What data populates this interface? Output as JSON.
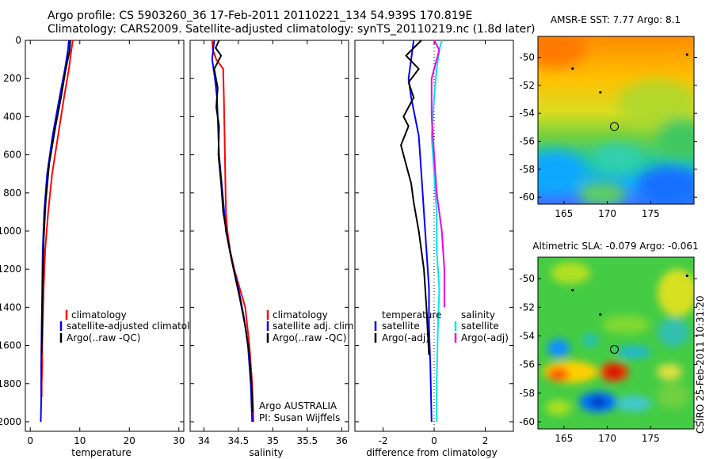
{
  "header": {
    "line1": "Argo profile: CS 5903260_36 17-Feb-2011 20110221_134 54.939S 170.819E",
    "line2": "Climatology: CARS2009. Satellite-adjusted climatology: synTS_20110219.nc (1.8d later)"
  },
  "stamp": "CSIRO 25-Feb-2011 10:31:20",
  "colors": {
    "climatology": "#ff0000",
    "satellite": "#0000ff",
    "argo": "#000000",
    "sat_salinity": "#00e5ee",
    "argo_salinity": "#ee00ee"
  },
  "chart_data": [
    {
      "type": "line",
      "id": "temperature",
      "xlabel": "temperature",
      "xlim": [
        -1,
        31
      ],
      "ylim": [
        2050,
        0
      ],
      "xticks": [
        0,
        10,
        20,
        30
      ],
      "yticks": [
        0,
        200,
        400,
        600,
        800,
        1000,
        1200,
        1400,
        1600,
        1800,
        2000
      ],
      "legend": [
        "climatology",
        "satellite-adjusted climatology",
        "Argo(..raw -QC)"
      ],
      "series": [
        {
          "name": "climatology",
          "color": "#ff0000",
          "x": [
            8.6,
            8.3,
            7.8,
            6.8,
            5.6,
            4.4,
            3.6,
            3.0,
            2.7,
            2.6,
            2.5,
            2.4,
            2.4,
            2.3,
            2.3
          ],
          "y": [
            0,
            50,
            150,
            300,
            500,
            700,
            900,
            1100,
            1300,
            1400,
            1500,
            1600,
            1700,
            1800,
            1870
          ]
        },
        {
          "name": "satellite-adjusted climatology",
          "color": "#0000ff",
          "x": [
            7.8,
            7.6,
            7.0,
            5.9,
            4.5,
            3.4,
            2.8,
            2.5,
            2.4,
            2.3,
            2.2,
            2.2,
            2.1
          ],
          "y": [
            0,
            50,
            150,
            300,
            500,
            700,
            900,
            1100,
            1300,
            1500,
            1700,
            1900,
            2000
          ]
        },
        {
          "name": "Argo(..raw -QC)",
          "color": "#000000",
          "x": [
            8.1,
            7.9,
            7.1,
            6.2,
            5.1,
            3.8,
            3.1,
            2.7,
            2.5,
            2.4,
            2.3
          ],
          "y": [
            0,
            60,
            160,
            300,
            450,
            650,
            850,
            1050,
            1250,
            1450,
            1650
          ]
        }
      ]
    },
    {
      "type": "line",
      "id": "salinity",
      "xlabel": "salinity",
      "xlim": [
        33.8,
        36.1
      ],
      "ylim": [
        2050,
        0
      ],
      "xticks": [
        34,
        34.5,
        35,
        35.5,
        36
      ],
      "legend": [
        "climatology",
        "satellite adj. clim.",
        "Argo(..raw -QC)"
      ],
      "annotation": [
        "Argo AUSTRALIA",
        "PI: Susan Wijffels"
      ],
      "series": [
        {
          "name": "climatology",
          "color": "#ff0000",
          "x": [
            34.12,
            34.13,
            34.18,
            34.28,
            34.29,
            34.3,
            34.31,
            34.32,
            34.34,
            34.38,
            34.44,
            34.52,
            34.6,
            34.66,
            34.7,
            34.72
          ],
          "y": [
            0,
            50,
            100,
            150,
            300,
            500,
            700,
            900,
            1000,
            1100,
            1200,
            1300,
            1400,
            1600,
            1800,
            2000
          ]
        },
        {
          "name": "satellite adj. clim.",
          "color": "#0000ff",
          "x": [
            34.15,
            34.12,
            34.16,
            34.19,
            34.2,
            34.22,
            34.27,
            34.32,
            34.4,
            34.5,
            34.58,
            34.64,
            34.68,
            34.7
          ],
          "y": [
            0,
            100,
            200,
            300,
            400,
            600,
            800,
            1000,
            1150,
            1300,
            1450,
            1600,
            1800,
            2000
          ]
        },
        {
          "name": "Argo(..raw -QC)",
          "color": "#000000",
          "x": [
            34.22,
            34.17,
            34.25,
            34.15,
            34.2,
            34.18,
            34.22,
            34.21,
            34.25,
            34.28,
            34.35,
            34.43,
            34.52,
            34.6,
            34.66,
            34.69,
            34.71
          ],
          "y": [
            0,
            40,
            80,
            150,
            250,
            350,
            450,
            600,
            750,
            900,
            1050,
            1200,
            1350,
            1500,
            1650,
            1800,
            1950
          ]
        }
      ]
    },
    {
      "type": "line",
      "id": "difference",
      "xlabel": "difference from climatology",
      "xlim": [
        -3.1,
        3.1
      ],
      "ylim": [
        2050,
        0
      ],
      "xticks": [
        -2,
        0,
        2
      ],
      "legend": [
        "temperature",
        "satellite",
        "Argo(-adj)",
        "salinity",
        "satellite",
        "Argo(-adj)"
      ],
      "series": [
        {
          "name": "temperature satellite",
          "color": "#0000ff",
          "x": [
            -0.8,
            -0.9,
            -1.0,
            -0.9,
            -0.6,
            -0.5,
            -0.4,
            -0.3,
            -0.2,
            -0.2,
            -0.15,
            -0.1
          ],
          "y": [
            0,
            100,
            200,
            300,
            500,
            700,
            900,
            1100,
            1300,
            1500,
            1700,
            2000
          ]
        },
        {
          "name": "temperature Argo(-adj)",
          "color": "#000000",
          "x": [
            -0.5,
            -1.1,
            -0.6,
            -1.0,
            -0.8,
            -1.2,
            -1.0,
            -1.3,
            -1.1,
            -0.9,
            -0.8,
            -0.6,
            -0.4,
            -0.3,
            -0.2
          ],
          "y": [
            0,
            80,
            150,
            220,
            300,
            400,
            450,
            550,
            650,
            750,
            850,
            1000,
            1200,
            1400,
            1650
          ]
        },
        {
          "name": "salinity satellite",
          "color": "#00e5ee",
          "x": [
            0.3,
            0.2,
            0.1,
            0.0,
            -0.1,
            0.0,
            0.1,
            0.1,
            0.2,
            0.15,
            0.1,
            0.1
          ],
          "y": [
            0,
            50,
            150,
            300,
            500,
            700,
            900,
            1100,
            1300,
            1500,
            1800,
            2000
          ]
        },
        {
          "name": "salinity Argo(-adj)",
          "color": "#ee00ee",
          "x": [
            0.0,
            0.2,
            0.1,
            -0.1,
            -0.1,
            0.0,
            0.1,
            0.3,
            0.4,
            0.4
          ],
          "y": [
            0,
            50,
            100,
            200,
            400,
            600,
            800,
            1000,
            1200,
            1400
          ]
        }
      ]
    },
    {
      "type": "heatmap",
      "id": "sst_map",
      "title": "AMSR-E SST: 7.77 Argo: 8.1",
      "xlim": [
        162,
        180
      ],
      "ylim": [
        -60.5,
        -48.5
      ],
      "xticks": [
        165,
        170,
        175
      ],
      "yticks": [
        -50,
        -52,
        -54,
        -56,
        -58,
        -60
      ],
      "argo_position": {
        "lon": 170.819,
        "lat": -54.939
      },
      "marks": [
        {
          "lon": 166.0,
          "lat": -50.8
        },
        {
          "lon": 169.2,
          "lat": -52.5
        },
        {
          "lon": 179.2,
          "lat": -49.8
        }
      ]
    },
    {
      "type": "heatmap",
      "id": "sla_map",
      "title": "Altimetric SLA: -0.079 Argo: -0.061",
      "xlim": [
        162,
        180
      ],
      "ylim": [
        -60.5,
        -48.5
      ],
      "xticks": [
        165,
        170,
        175
      ],
      "yticks": [
        -50,
        -52,
        -54,
        -56,
        -58,
        -60
      ],
      "argo_position": {
        "lon": 170.819,
        "lat": -54.939
      },
      "marks": [
        {
          "lon": 166.0,
          "lat": -50.8
        },
        {
          "lon": 169.2,
          "lat": -52.5
        },
        {
          "lon": 179.2,
          "lat": -49.8
        }
      ]
    }
  ]
}
